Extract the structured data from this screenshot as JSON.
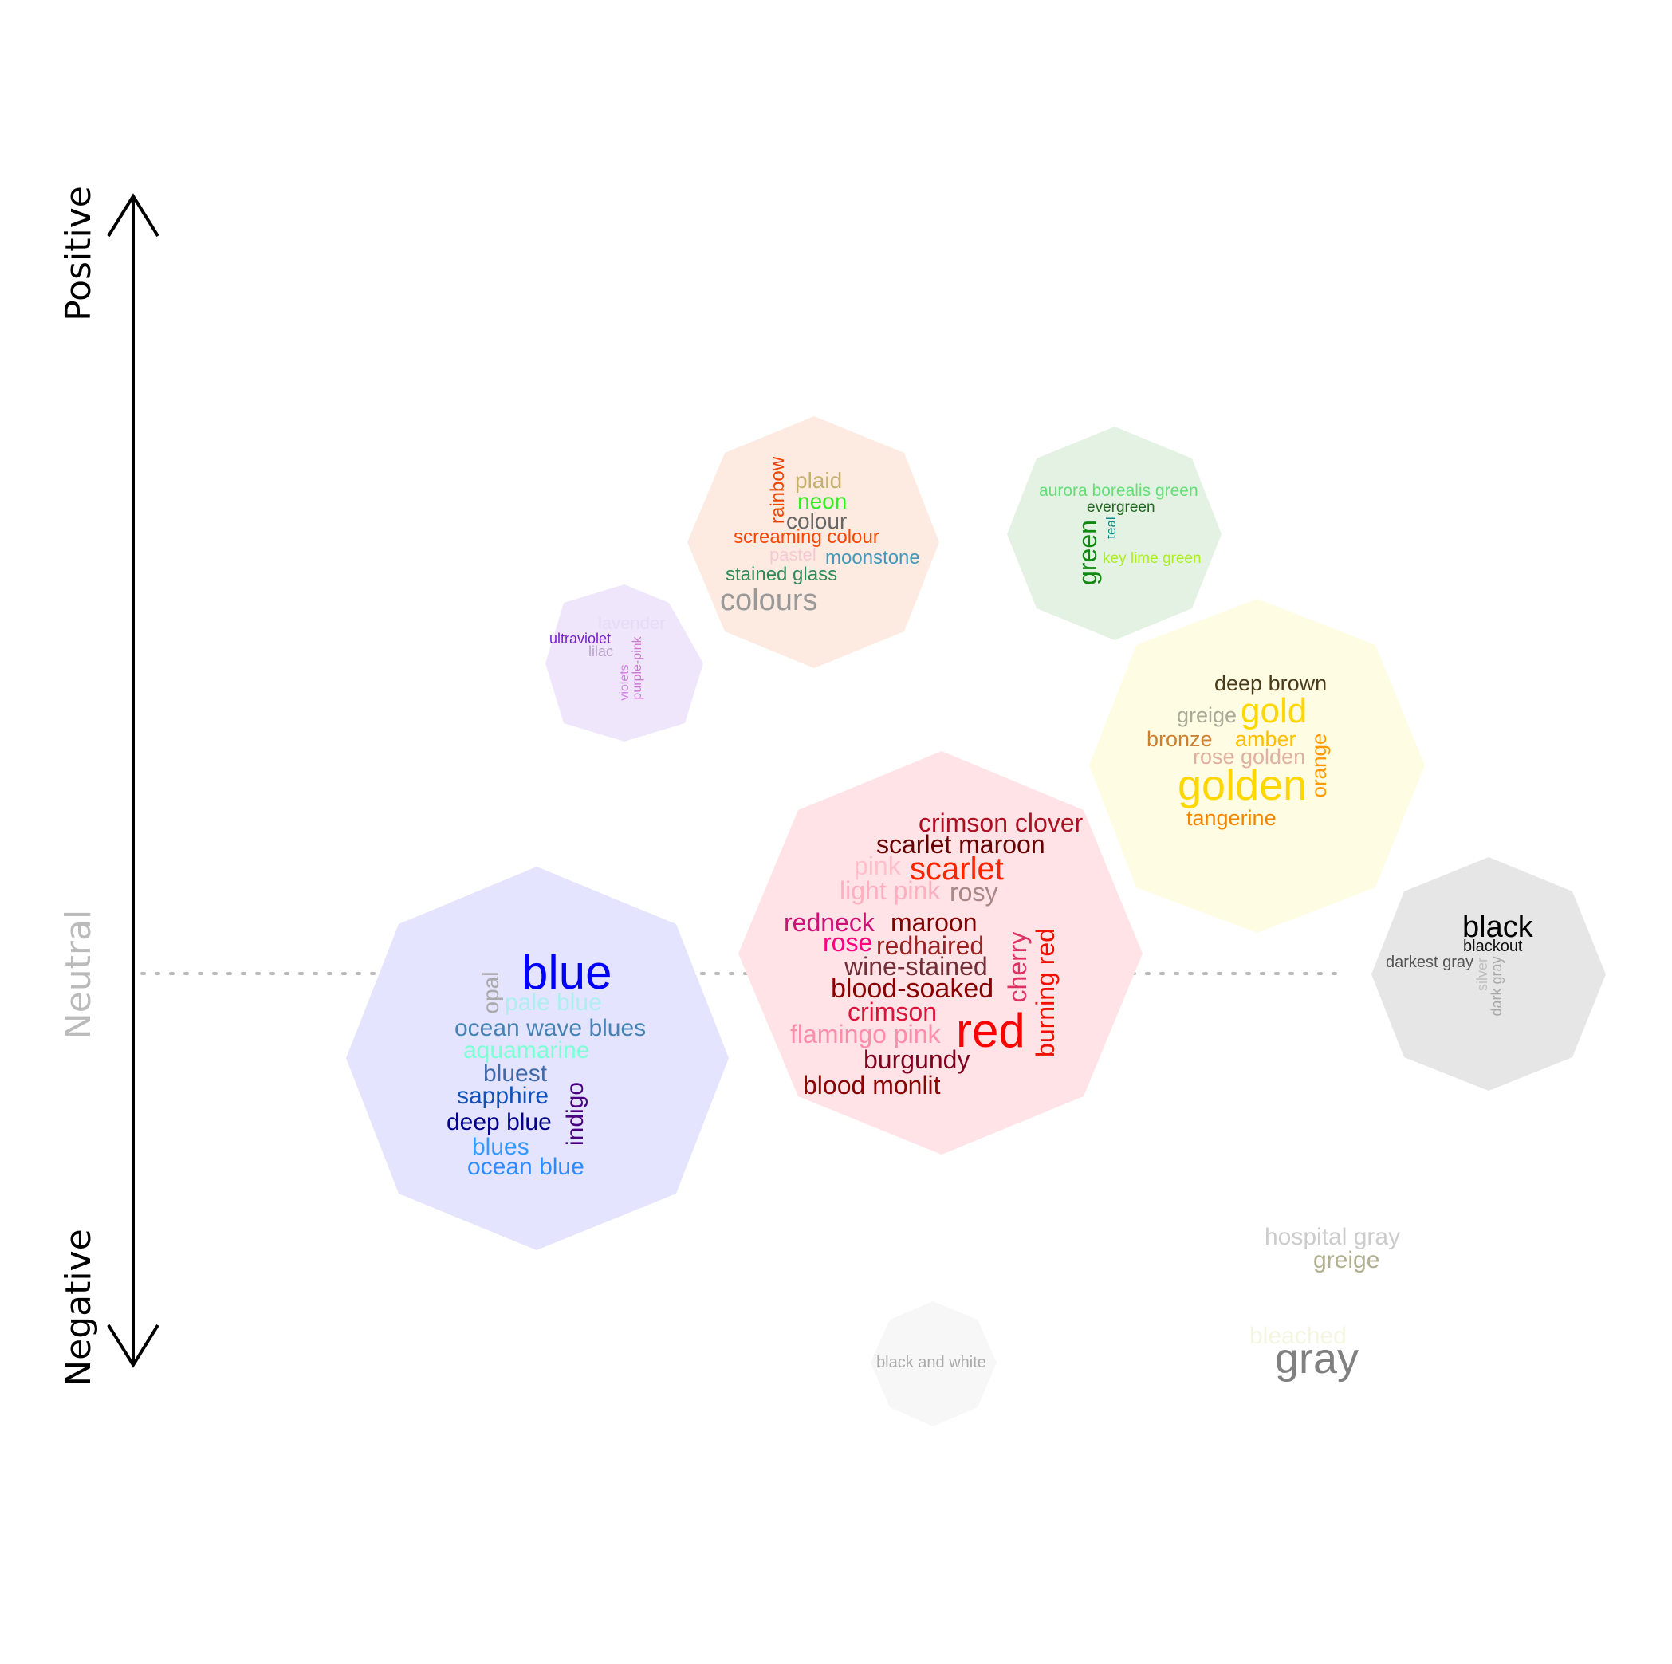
{
  "axis": {
    "top_label": "Positive",
    "middle_label": "Neutral",
    "bottom_label": "Negative",
    "line_color": "#000000",
    "neutral_color": "#bbbbbb"
  },
  "clusters": [
    {
      "id": "purple",
      "fill": "#efe6fb",
      "words": [
        {
          "text": "lavender",
          "color": "#e6dcf5"
        },
        {
          "text": "ultraviolet",
          "color": "#7a1fcf"
        },
        {
          "text": "lilac",
          "color": "#b8a3c9"
        },
        {
          "text": "violets",
          "color": "#d080e0"
        },
        {
          "text": "purple-pink",
          "color": "#cc77cc"
        }
      ]
    },
    {
      "id": "multicolor",
      "fill": "#fdebe2",
      "words": [
        {
          "text": "rainbow",
          "color": "#ee4400"
        },
        {
          "text": "plaid",
          "color": "#c4b06a"
        },
        {
          "text": "neon",
          "color": "#33ee22"
        },
        {
          "text": "colour",
          "color": "#666666"
        },
        {
          "text": "screaming colour",
          "color": "#ff4400"
        },
        {
          "text": "pastel",
          "color": "#f5c8d5"
        },
        {
          "text": "moonstone",
          "color": "#4499bb"
        },
        {
          "text": "stained glass",
          "color": "#2e8b57"
        },
        {
          "text": "colours",
          "color": "#999999"
        }
      ]
    },
    {
      "id": "green",
      "fill": "#e4f2e3",
      "words": [
        {
          "text": "aurora borealis green",
          "color": "#66dd77"
        },
        {
          "text": "evergreen",
          "color": "#226622"
        },
        {
          "text": "teal",
          "color": "#118888"
        },
        {
          "text": "green",
          "color": "#118811"
        },
        {
          "text": "key lime green",
          "color": "#aaee22"
        }
      ]
    },
    {
      "id": "gold",
      "fill": "#fffce4",
      "words": [
        {
          "text": "deep brown",
          "color": "#4a3b1b"
        },
        {
          "text": "greige",
          "color": "#aaaa99"
        },
        {
          "text": "gold",
          "color": "#ffd700"
        },
        {
          "text": "bronze",
          "color": "#cd7f32"
        },
        {
          "text": "amber",
          "color": "#ffbf00"
        },
        {
          "text": "rose golden",
          "color": "#e0b0a0"
        },
        {
          "text": "golden",
          "color": "#ffd700"
        },
        {
          "text": "orange",
          "color": "#ff9900"
        },
        {
          "text": "tangerine",
          "color": "#f28500"
        }
      ]
    },
    {
      "id": "red",
      "fill": "#ffe3e6",
      "words": [
        {
          "text": "crimson clover",
          "color": "#aa1122"
        },
        {
          "text": "scarlet maroon",
          "color": "#660000"
        },
        {
          "text": "pink",
          "color": "#ffc0cb"
        },
        {
          "text": "scarlet",
          "color": "#ff2400"
        },
        {
          "text": "light pink",
          "color": "#ffb0c0"
        },
        {
          "text": "rosy",
          "color": "#aa8888"
        },
        {
          "text": "redneck",
          "color": "#cc1177"
        },
        {
          "text": "maroon",
          "color": "#800000"
        },
        {
          "text": "rose",
          "color": "#ff007f"
        },
        {
          "text": "redhaired",
          "color": "#992222"
        },
        {
          "text": "cherry",
          "color": "#de3163"
        },
        {
          "text": "burning red",
          "color": "#ee1100"
        },
        {
          "text": "wine-stained",
          "color": "#722f37"
        },
        {
          "text": "blood-soaked",
          "color": "#880000"
        },
        {
          "text": "crimson",
          "color": "#dc143c"
        },
        {
          "text": "flamingo pink",
          "color": "#fc8eac"
        },
        {
          "text": "red",
          "color": "#ff0000"
        },
        {
          "text": "burgundy",
          "color": "#800020"
        },
        {
          "text": "blood monlit",
          "color": "#8a0303"
        }
      ]
    },
    {
      "id": "blue",
      "fill": "#e4e4fe",
      "words": [
        {
          "text": "blue",
          "color": "#0000ff"
        },
        {
          "text": "opal",
          "color": "#aaaaaa"
        },
        {
          "text": "pale blue",
          "color": "#afeeee"
        },
        {
          "text": "ocean wave blues",
          "color": "#4682b4"
        },
        {
          "text": "aquamarine",
          "color": "#7fffd4"
        },
        {
          "text": "bluest",
          "color": "#4169aa"
        },
        {
          "text": "sapphire",
          "color": "#0f52ba"
        },
        {
          "text": "deep blue",
          "color": "#000088"
        },
        {
          "text": "indigo",
          "color": "#4b0082"
        },
        {
          "text": "blues",
          "color": "#3399ff"
        },
        {
          "text": "ocean blue",
          "color": "#2e8bff"
        }
      ]
    },
    {
      "id": "black",
      "fill": "#e6e6e6",
      "words": [
        {
          "text": "black",
          "color": "#000000"
        },
        {
          "text": "blackout",
          "color": "#111111"
        },
        {
          "text": "darkest gray",
          "color": "#555555"
        },
        {
          "text": "silver",
          "color": "#c0c0c0"
        },
        {
          "text": "dark gray",
          "color": "#a9a9a9"
        }
      ]
    },
    {
      "id": "black-and-white",
      "fill": "#f7f7f7",
      "words": [
        {
          "text": "black and white",
          "color": "#aaaaaa"
        }
      ]
    },
    {
      "id": "gray-loose",
      "fill": "none",
      "words": [
        {
          "text": "hospital gray",
          "color": "#cccccc"
        },
        {
          "text": "greige",
          "color": "#b0b090"
        },
        {
          "text": "bleached",
          "color": "#f4f6e2"
        },
        {
          "text": "gray",
          "color": "#808080"
        }
      ]
    }
  ]
}
